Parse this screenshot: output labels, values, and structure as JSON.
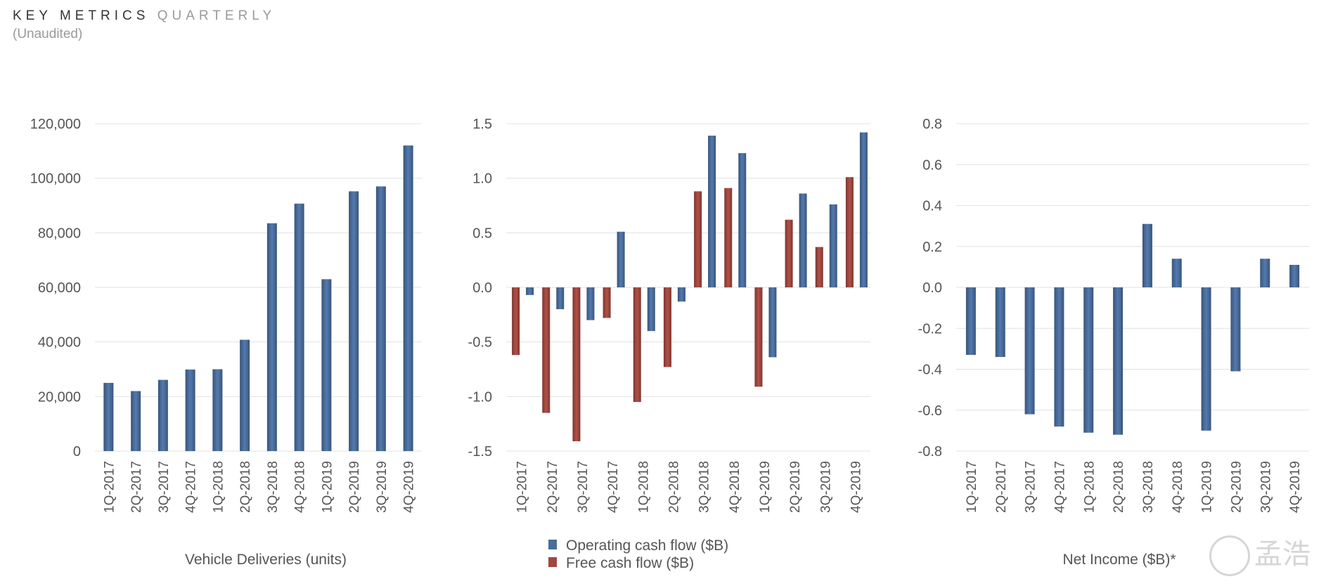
{
  "header": {
    "title_main": "KEY METRICS",
    "title_secondary": "QUARTERLY",
    "subtitle": "(Unaudited)"
  },
  "watermark": "孟浩",
  "colors": {
    "blue": "#4a6d9c",
    "red": "#a0473f",
    "grid": "#e1e1e1"
  },
  "chart_data": [
    {
      "type": "bar",
      "title": "Vehicle Deliveries (units)",
      "categories": [
        "1Q-2017",
        "2Q-2017",
        "3Q-2017",
        "4Q-2017",
        "1Q-2018",
        "2Q-2018",
        "3Q-2018",
        "4Q-2018",
        "1Q-2019",
        "2Q-2019",
        "3Q-2019",
        "4Q-2019"
      ],
      "series": [
        {
          "values": [
            25000,
            22000,
            26100,
            29900,
            30000,
            40800,
            83500,
            90700,
            63000,
            95200,
            97000,
            112000
          ],
          "color": "#4a6d9c"
        }
      ],
      "ylim": [
        0,
        120000
      ],
      "yticks": [
        0,
        20000,
        40000,
        60000,
        80000,
        100000,
        120000
      ],
      "ytick_labels": [
        "0",
        "20,000",
        "40,000",
        "60,000",
        "80,000",
        "100,000",
        "120,000"
      ],
      "grid": true
    },
    {
      "type": "bar",
      "title": "",
      "categories": [
        "1Q-2017",
        "2Q-2017",
        "3Q-2017",
        "4Q-2017",
        "1Q-2018",
        "2Q-2018",
        "3Q-2018",
        "4Q-2018",
        "1Q-2019",
        "2Q-2019",
        "3Q-2019",
        "4Q-2019"
      ],
      "series": [
        {
          "name": "Free cash flow ($B)",
          "values": [
            -0.62,
            -1.15,
            -1.41,
            -0.28,
            -1.05,
            -0.73,
            0.88,
            0.91,
            -0.91,
            0.62,
            0.37,
            1.01
          ],
          "color": "#a0473f"
        },
        {
          "name": "Operating cash flow ($B)",
          "values": [
            -0.07,
            -0.2,
            -0.3,
            0.51,
            -0.4,
            -0.13,
            1.39,
            1.23,
            -0.64,
            0.86,
            0.76,
            1.42
          ],
          "color": "#4a6d9c"
        }
      ],
      "legend": [
        {
          "label": "Operating cash flow ($B)",
          "color": "#4a6d9c"
        },
        {
          "label": "Free cash flow ($B)",
          "color": "#a0473f"
        }
      ],
      "legend_position": "bottom",
      "ylim": [
        -1.5,
        1.5
      ],
      "yticks": [
        -1.5,
        -1.0,
        -0.5,
        0.0,
        0.5,
        1.0,
        1.5
      ],
      "ytick_labels": [
        "-1.5",
        "-1.0",
        "-0.5",
        "0.0",
        "0.5",
        "1.0",
        "1.5"
      ],
      "grid": true
    },
    {
      "type": "bar",
      "title": "Net Income ($B)*",
      "categories": [
        "1Q-2017",
        "2Q-2017",
        "3Q-2017",
        "4Q-2017",
        "1Q-2018",
        "2Q-2018",
        "3Q-2018",
        "4Q-2018",
        "1Q-2019",
        "2Q-2019",
        "3Q-2019",
        "4Q-2019"
      ],
      "series": [
        {
          "values": [
            -0.33,
            -0.34,
            -0.62,
            -0.68,
            -0.71,
            -0.72,
            0.31,
            0.14,
            -0.7,
            -0.41,
            0.14,
            0.11
          ],
          "color": "#4a6d9c"
        }
      ],
      "ylim": [
        -0.8,
        0.8
      ],
      "yticks": [
        -0.8,
        -0.6,
        -0.4,
        -0.2,
        0.0,
        0.2,
        0.4,
        0.6,
        0.8
      ],
      "ytick_labels": [
        "-0.8",
        "-0.6",
        "-0.4",
        "-0.2",
        "0.0",
        "0.2",
        "0.4",
        "0.6",
        "0.8"
      ],
      "grid": true
    }
  ]
}
